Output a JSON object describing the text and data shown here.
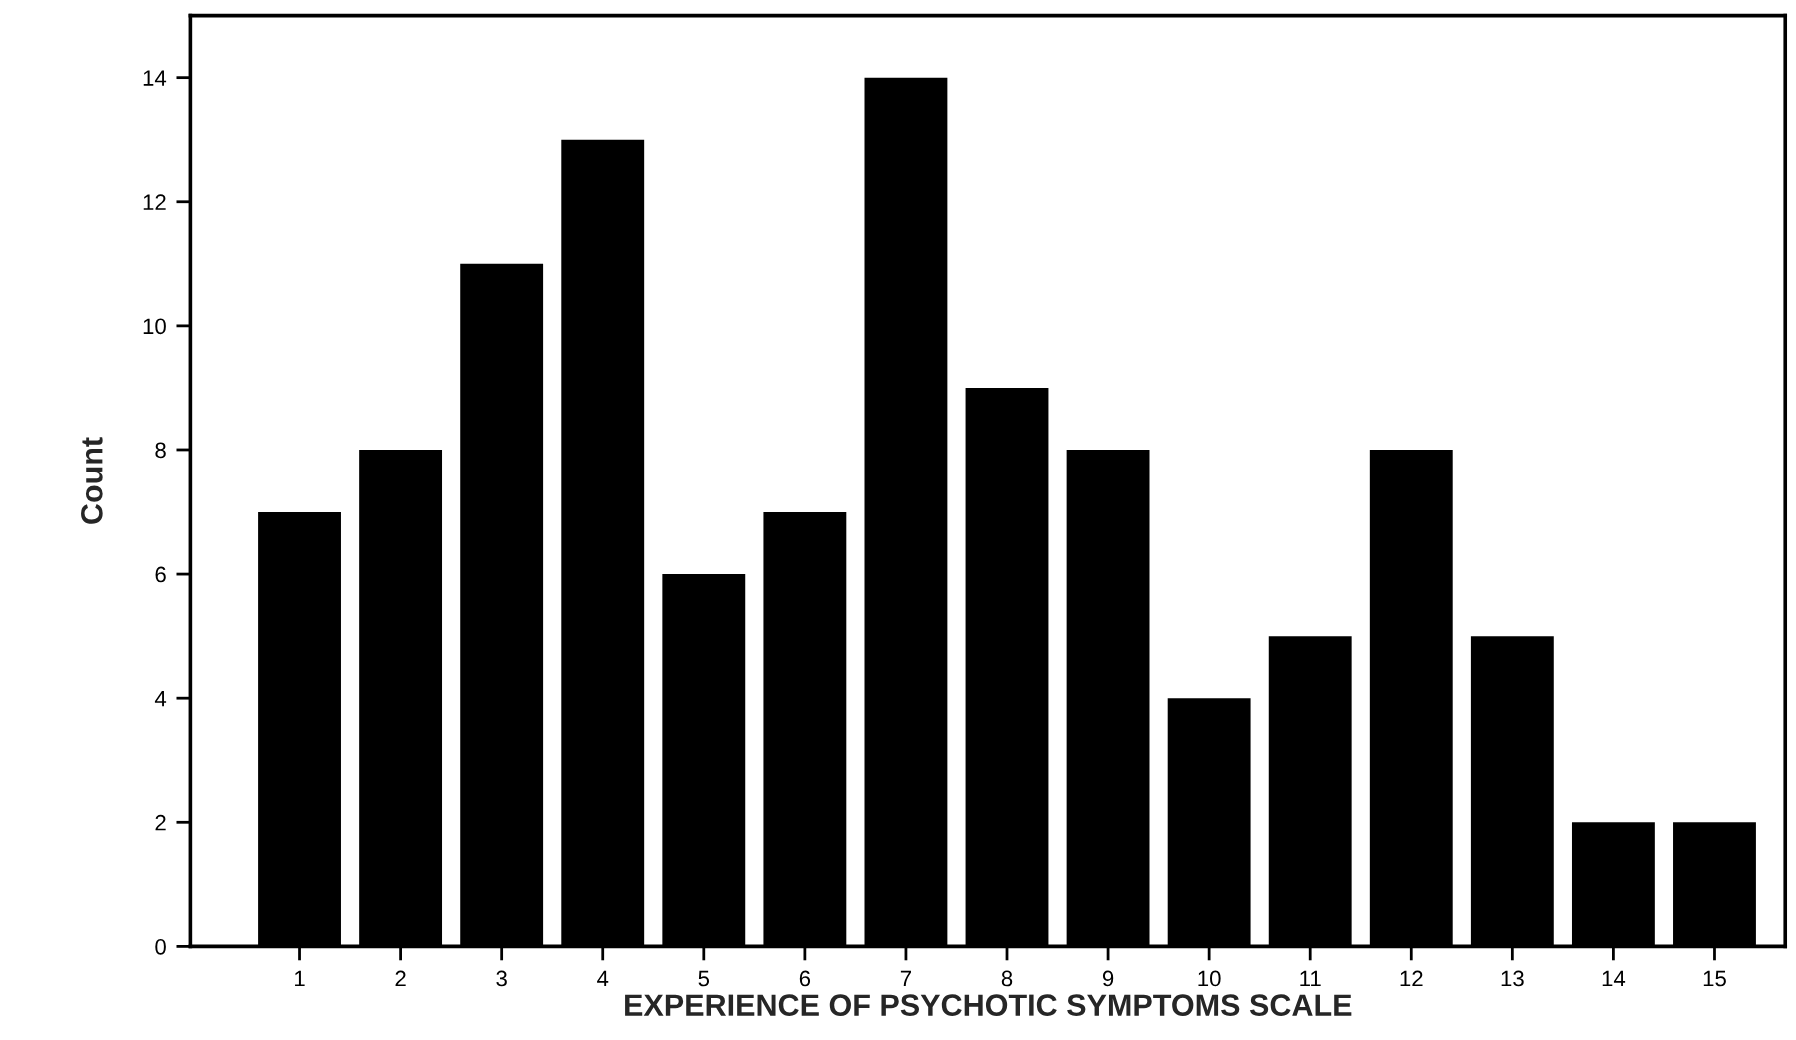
{
  "chart_data": {
    "type": "bar",
    "xlabel": "EXPERIENCE OF PSYCHOTIC SYMPTOMS SCALE",
    "ylabel": "Count",
    "categories": [
      "1",
      "2",
      "3",
      "4",
      "5",
      "6",
      "7",
      "8",
      "9",
      "10",
      "11",
      "12",
      "13",
      "14",
      "15"
    ],
    "values": [
      7,
      8,
      11,
      13,
      6,
      7,
      14,
      9,
      8,
      4,
      5,
      8,
      5,
      2,
      2
    ],
    "color": "#000000",
    "ylim": [
      0,
      15
    ],
    "yticks": [
      0,
      2,
      4,
      6,
      8,
      10,
      12,
      14
    ],
    "grid": false
  }
}
